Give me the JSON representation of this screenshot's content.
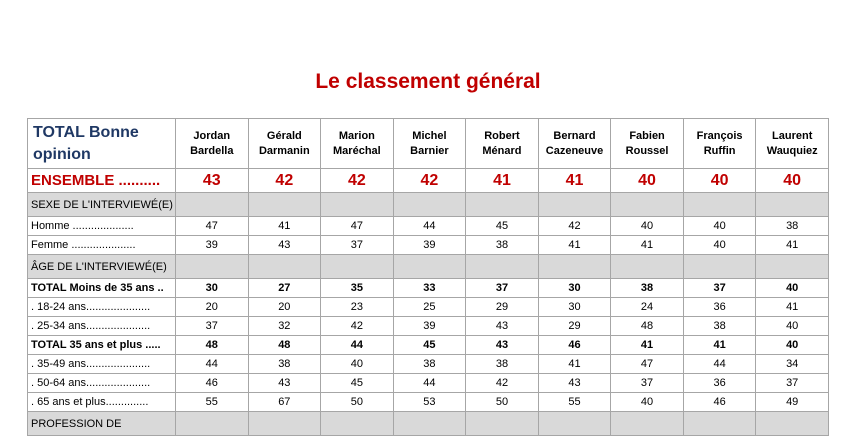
{
  "title": "Le classement général",
  "table": {
    "corner": "TOTAL Bonne opinion",
    "columns": [
      {
        "first": "Jordan",
        "last": "Bardella"
      },
      {
        "first": "Gérald",
        "last": "Darmanin"
      },
      {
        "first": "Marion",
        "last": "Maréchal"
      },
      {
        "first": "Michel",
        "last": "Barnier"
      },
      {
        "first": "Robert",
        "last": "Ménard"
      },
      {
        "first": "Bernard",
        "last": "Cazeneuve"
      },
      {
        "first": "Fabien",
        "last": "Roussel"
      },
      {
        "first": "François",
        "last": "Ruffin"
      },
      {
        "first": "Laurent",
        "last": "Wauquiez"
      }
    ],
    "ensemble": {
      "label": "ENSEMBLE ..........",
      "values": [
        43,
        42,
        42,
        42,
        41,
        41,
        40,
        40,
        40
      ]
    },
    "sections": [
      {
        "title": "SEXE DE L'INTERVIEWÉ(E)",
        "rows": [
          {
            "label": "Homme ....................",
            "values": [
              47,
              41,
              47,
              44,
              45,
              42,
              40,
              40,
              38
            ]
          },
          {
            "label": "Femme .....................",
            "values": [
              39,
              43,
              37,
              39,
              38,
              41,
              41,
              40,
              41
            ]
          }
        ]
      },
      {
        "title": "ÂGE DE L'INTERVIEWÉ(E)",
        "rows": [
          {
            "label": "TOTAL Moins de 35 ans ..",
            "bold": true,
            "values": [
              30,
              27,
              35,
              33,
              37,
              30,
              38,
              37,
              40
            ]
          },
          {
            "label": ". 18-24 ans.....................",
            "values": [
              20,
              20,
              23,
              25,
              29,
              30,
              24,
              36,
              41
            ]
          },
          {
            "label": ". 25-34 ans.....................",
            "values": [
              37,
              32,
              42,
              39,
              43,
              29,
              48,
              38,
              40
            ]
          },
          {
            "label": "TOTAL 35 ans et plus .....",
            "bold": true,
            "values": [
              48,
              48,
              44,
              45,
              43,
              46,
              41,
              41,
              40
            ]
          },
          {
            "label": ". 35-49 ans.....................",
            "values": [
              44,
              38,
              40,
              38,
              38,
              41,
              47,
              44,
              34
            ]
          },
          {
            "label": ". 50-64 ans.....................",
            "values": [
              46,
              43,
              45,
              44,
              42,
              43,
              37,
              36,
              37
            ]
          },
          {
            "label": ". 65 ans  et plus..............",
            "values": [
              55,
              67,
              50,
              53,
              50,
              55,
              40,
              46,
              49
            ]
          }
        ]
      },
      {
        "title": "PROFESSION DE",
        "rows": []
      }
    ]
  }
}
